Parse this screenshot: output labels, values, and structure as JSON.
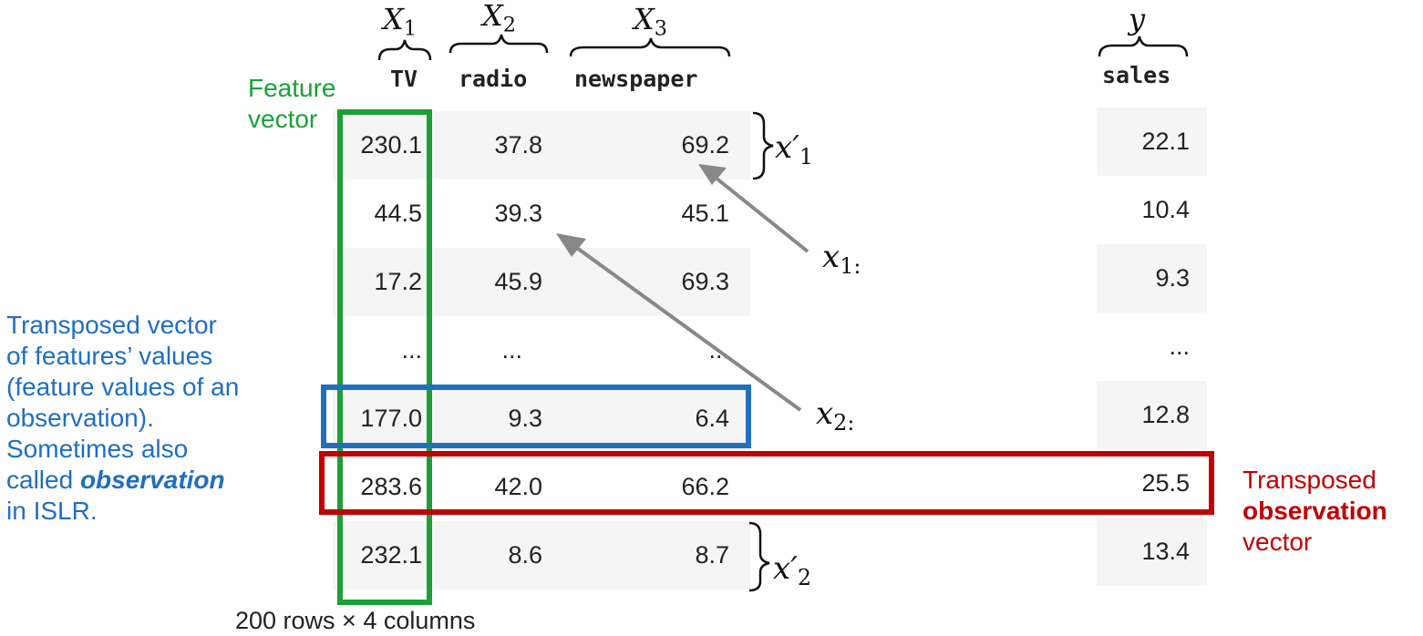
{
  "variables": {
    "x1": {
      "letter": "X",
      "index": "1"
    },
    "x2": {
      "letter": "X",
      "index": "2"
    },
    "x3": {
      "letter": "X",
      "index": "3"
    },
    "y": "y"
  },
  "table": {
    "headers": {
      "tv": "TV",
      "radio": "radio",
      "newspaper": "newspaper",
      "sales": "sales"
    },
    "rows": [
      {
        "tv": "230.1",
        "radio": "37.8",
        "newspaper": "69.2",
        "sales": "22.1"
      },
      {
        "tv": "44.5",
        "radio": "39.3",
        "newspaper": "45.1",
        "sales": "10.4"
      },
      {
        "tv": "17.2",
        "radio": "45.9",
        "newspaper": "69.3",
        "sales": "9.3"
      },
      {
        "tv": "...",
        "radio": "...",
        "newspaper": "...",
        "sales": "..."
      },
      {
        "tv": "177.0",
        "radio": "9.3",
        "newspaper": "6.4",
        "sales": "12.8"
      },
      {
        "tv": "283.6",
        "radio": "42.0",
        "newspaper": "66.2",
        "sales": "25.5"
      },
      {
        "tv": "232.1",
        "radio": "8.6",
        "newspaper": "8.7",
        "sales": "13.4"
      }
    ],
    "footer": "200 rows × 4 columns"
  },
  "vector_labels": {
    "x_prime_1": {
      "letter": "x",
      "prime": "′",
      "index": "1"
    },
    "x_prime_2": {
      "letter": "x",
      "prime": "′",
      "index": "2"
    },
    "x_13": {
      "letter": "x",
      "index": "1:"
    },
    "x_22": {
      "letter": "x",
      "index": "2:"
    }
  },
  "annotations": {
    "feature_vector": {
      "line1": "Feature",
      "line2": "vector"
    },
    "transposed_features": {
      "lines": [
        "Transposed vector",
        "of features’ values",
        "(feature values of an",
        "observation).",
        "Sometimes also"
      ],
      "called_prefix": "called ",
      "called_emph": "observation",
      "last_line": "in ISLR."
    },
    "transposed_observation": {
      "line1": "Transposed",
      "line2": "observation",
      "line3": "vector"
    }
  },
  "colors": {
    "green": "#1aa135",
    "blue": "#1f6fc0",
    "red": "#c00000",
    "arrow": "#888888",
    "stripe": "#f5f5f5"
  }
}
